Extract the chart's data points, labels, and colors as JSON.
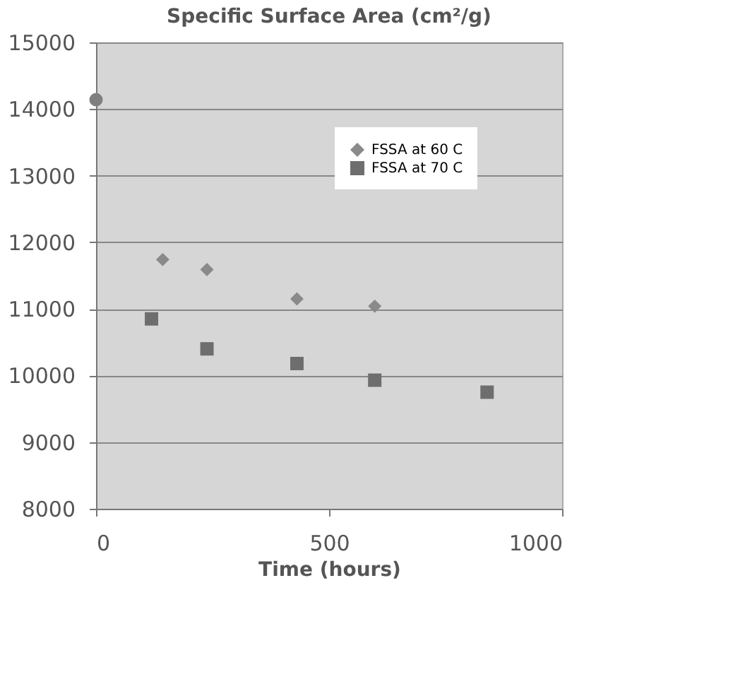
{
  "chart_data": {
    "type": "scatter",
    "title": "Specific Surface Area (cm²/g)",
    "xlabel": "Time (hours)",
    "xlim": [
      0,
      1000
    ],
    "xticks": [
      0,
      500,
      1000
    ],
    "ylim": [
      8000,
      15000
    ],
    "yticks": [
      8000,
      9000,
      10000,
      11000,
      12000,
      13000,
      14000,
      15000
    ],
    "grid": "y",
    "legend": "top right",
    "series": [
      {
        "marker": "circle",
        "color": "#7f7f7f",
        "x": [
          0
        ],
        "values": [
          14140
        ]
      },
      {
        "marker": "diamond",
        "name": "FSSA at 60 C",
        "color": "#8a8a8a",
        "x": [
          143,
          238,
          431,
          598
        ],
        "values": [
          11740,
          11590,
          11150,
          11040
        ]
      },
      {
        "marker": "square",
        "name": "FSSA at 70 C",
        "color": "#6e6e6e",
        "x": [
          119,
          238,
          431,
          598,
          839
        ],
        "values": [
          10850,
          10400,
          10180,
          9930,
          9750
        ]
      }
    ]
  }
}
